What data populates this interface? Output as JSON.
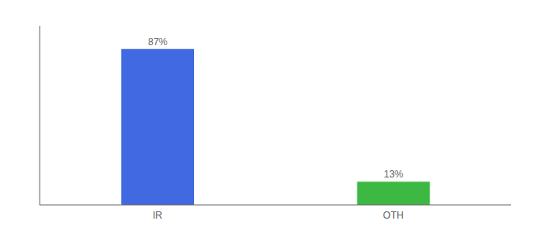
{
  "chart_data": {
    "type": "bar",
    "categories": [
      "IR",
      "OTH"
    ],
    "values": [
      87,
      13
    ],
    "value_labels": [
      "87%",
      "13%"
    ],
    "colors": [
      "#4169E1",
      "#3CB843"
    ],
    "ylim": [
      0,
      100
    ],
    "data_labels": true,
    "tick_labels": "x",
    "grid": false
  }
}
